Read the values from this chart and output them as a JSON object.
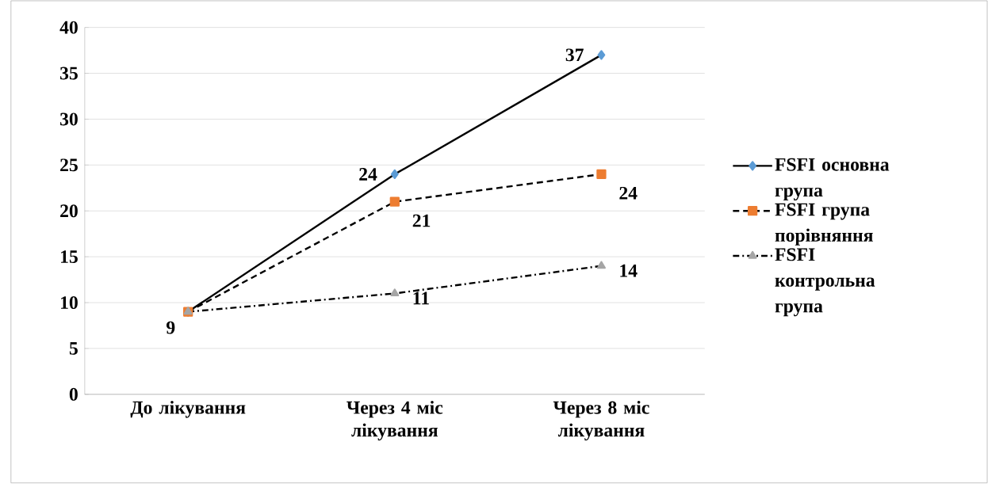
{
  "chart_data": {
    "type": "line",
    "categories": [
      "До лікування",
      "Через 4 міс лікування",
      "Через 8 міс лікування"
    ],
    "ylim": [
      0,
      40
    ],
    "yticks": [
      0,
      5,
      10,
      15,
      20,
      25,
      30,
      35,
      40
    ],
    "grid": "y",
    "legend": "right",
    "series": [
      {
        "name": "FSFI основна група",
        "color": "#5b9bd5",
        "marker": "diamond",
        "line_style": "solid",
        "values": [
          9,
          24,
          37
        ],
        "value_labels": [
          null,
          "24",
          "37"
        ]
      },
      {
        "name": "FSFI група порівняння",
        "color": "#ed7d31",
        "marker": "square",
        "line_style": "dashed",
        "values": [
          9,
          21,
          24
        ],
        "value_labels": [
          null,
          "21",
          "24"
        ]
      },
      {
        "name": "FSFI контрольна група",
        "color": "#a5a5a5",
        "marker": "triangle",
        "line_style": "dashdot",
        "values": [
          9,
          11,
          14
        ],
        "value_labels": [
          "9",
          "11",
          "14"
        ]
      }
    ]
  }
}
